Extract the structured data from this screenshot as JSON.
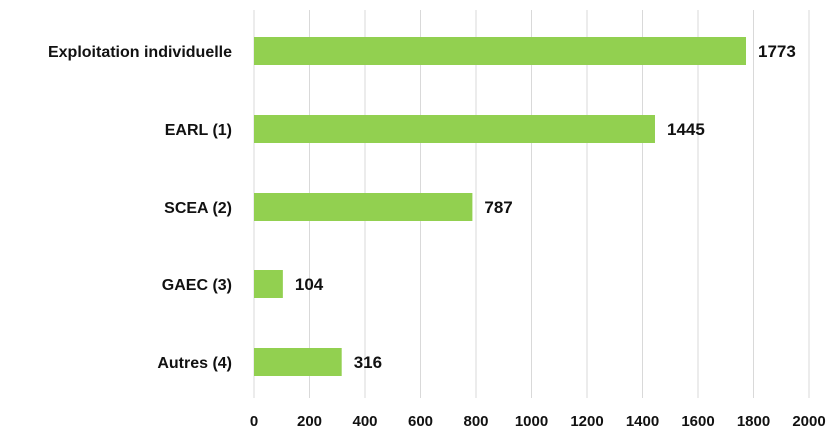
{
  "chart_data": {
    "type": "bar",
    "orientation": "horizontal",
    "categories": [
      "Exploitation individuelle",
      "EARL (1)",
      "SCEA (2)",
      "GAEC (3)",
      "Autres (4)"
    ],
    "values": [
      1773,
      1445,
      787,
      104,
      316
    ],
    "title": "",
    "xlabel": "",
    "ylabel": "",
    "xlim": [
      0,
      2000
    ],
    "x_ticks": [
      "0",
      "200",
      "400",
      "600",
      "800",
      "1000",
      "1200",
      "1400",
      "1600",
      "1800",
      "2000"
    ],
    "grid": "vertical",
    "legend": "none",
    "bar_color": "#92d050",
    "show_value_labels": true
  }
}
